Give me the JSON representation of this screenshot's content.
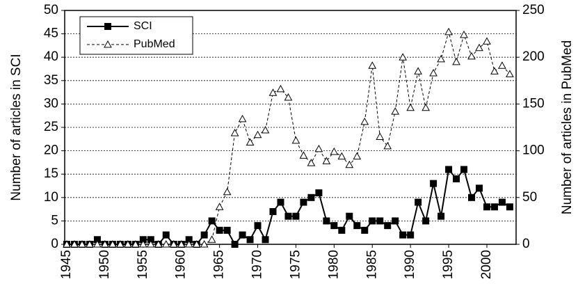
{
  "chart_data": {
    "type": "line",
    "categories": [
      "1945",
      null,
      null,
      null,
      null,
      "1950",
      null,
      null,
      null,
      null,
      "1955",
      null,
      null,
      null,
      null,
      "1960",
      null,
      null,
      null,
      null,
      "1965",
      null,
      null,
      null,
      null,
      "1970",
      null,
      null,
      null,
      null,
      "1975",
      null,
      null,
      null,
      null,
      "1980",
      null,
      null,
      null,
      null,
      "1985",
      null,
      null,
      null,
      null,
      "1990",
      null,
      null,
      null,
      null,
      "1995",
      null,
      null,
      null,
      null,
      "2000",
      null,
      null,
      null
    ],
    "series": [
      {
        "name": "SCI",
        "color": "#000000",
        "axis": "y",
        "values": [
          0,
          0,
          0,
          0,
          1,
          0,
          0,
          0,
          0,
          0,
          1,
          1,
          0,
          2,
          0,
          0,
          1,
          0,
          2,
          5,
          3,
          3,
          0,
          2,
          1,
          4,
          1,
          7,
          9,
          6,
          6,
          9,
          10,
          11,
          5,
          4,
          3,
          6,
          4,
          3,
          5,
          5,
          4,
          5,
          2,
          2,
          9,
          5,
          13,
          6,
          16,
          14,
          16,
          10,
          12,
          8,
          8,
          9,
          8
        ]
      },
      {
        "name": "PubMed",
        "color": "#000000",
        "axis": "y2",
        "values": [
          0,
          0,
          0,
          0,
          0,
          0,
          0,
          0,
          0,
          0,
          0,
          0,
          0,
          0,
          0,
          0,
          0,
          0,
          0,
          5,
          40,
          56,
          119,
          134,
          109,
          117,
          122,
          162,
          166,
          157,
          111,
          95,
          87,
          102,
          89,
          99,
          94,
          85,
          94,
          131,
          191,
          115,
          105,
          142,
          200,
          146,
          185,
          146,
          183,
          198,
          227,
          195,
          224,
          201,
          210,
          217,
          185,
          191,
          182
        ]
      }
    ],
    "ylabel": "Number of articles in SCI",
    "y2label": "Number of articles in PubMed",
    "ylim": [
      0,
      50
    ],
    "yticks": [
      0,
      5,
      10,
      15,
      20,
      25,
      30,
      35,
      40,
      45,
      50
    ],
    "y2lim": [
      0,
      250
    ],
    "y2ticks": [
      0,
      50,
      100,
      150,
      200,
      250
    ],
    "grid": true,
    "legend": "upper-left"
  }
}
